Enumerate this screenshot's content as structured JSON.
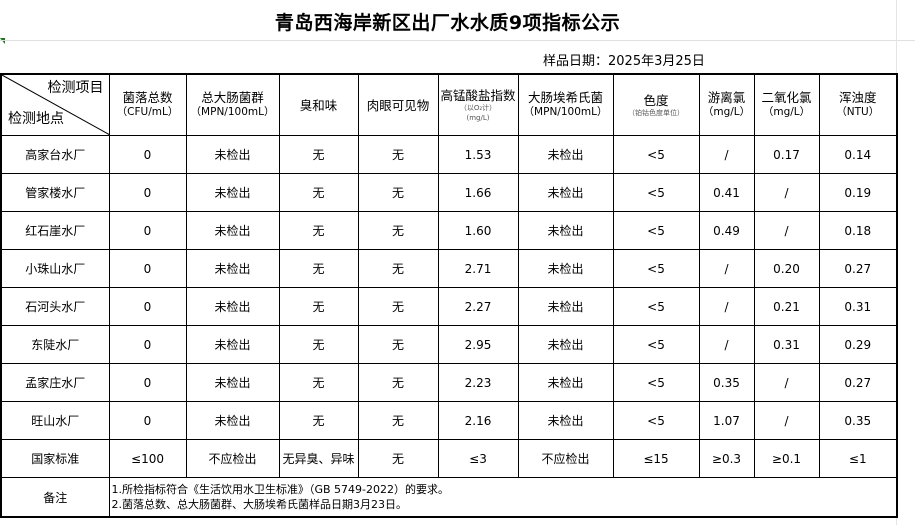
{
  "title": "青岛西海岸新区出厂水水质9项指标公示",
  "sample_date": "样品日期：2025年3月25日",
  "header": {
    "corner_top": "检测项目",
    "corner_bottom": "检测地点",
    "columns": [
      {
        "name": "菌落总数",
        "unit": "（CFU/mL）"
      },
      {
        "name": "总大肠菌群",
        "unit": "（MPN/100mL）"
      },
      {
        "name": "臭和味",
        "unit": ""
      },
      {
        "name": "肉眼可见物",
        "unit": ""
      },
      {
        "name": "高锰酸盐指数",
        "note": "（以O₂计）",
        "unit": "(mg/L)"
      },
      {
        "name": "大肠埃希氏菌",
        "unit": "（MPN/100mL）"
      },
      {
        "name": "色度",
        "note": "（铂钴色度单位）",
        "unit": ""
      },
      {
        "name": "游离氯",
        "unit": "（mg/L）"
      },
      {
        "name": "二氧化氯",
        "unit": "（mg/L）"
      },
      {
        "name": "浑浊度",
        "unit": "（NTU）"
      }
    ]
  },
  "rows": [
    {
      "site": "高家台水厂",
      "values": [
        "0",
        "未检出",
        "无",
        "无",
        "1.53",
        "未检出",
        "<5",
        "/",
        "0.17",
        "0.14"
      ]
    },
    {
      "site": "管家楼水厂",
      "values": [
        "0",
        "未检出",
        "无",
        "无",
        "1.66",
        "未检出",
        "<5",
        "0.41",
        "/",
        "0.19"
      ]
    },
    {
      "site": "红石崖水厂",
      "values": [
        "0",
        "未检出",
        "无",
        "无",
        "1.60",
        "未检出",
        "<5",
        "0.49",
        "/",
        "0.18"
      ]
    },
    {
      "site": "小珠山水厂",
      "values": [
        "0",
        "未检出",
        "无",
        "无",
        "2.71",
        "未检出",
        "<5",
        "/",
        "0.20",
        "0.27"
      ]
    },
    {
      "site": "石河头水厂",
      "values": [
        "0",
        "未检出",
        "无",
        "无",
        "2.27",
        "未检出",
        "<5",
        "/",
        "0.21",
        "0.31"
      ]
    },
    {
      "site": "东陡水厂",
      "values": [
        "0",
        "未检出",
        "无",
        "无",
        "2.95",
        "未检出",
        "<5",
        "/",
        "0.31",
        "0.29"
      ]
    },
    {
      "site": "孟家庄水厂",
      "values": [
        "0",
        "未检出",
        "无",
        "无",
        "2.23",
        "未检出",
        "<5",
        "0.35",
        "/",
        "0.27"
      ]
    },
    {
      "site": "旺山水厂",
      "values": [
        "0",
        "未检出",
        "无",
        "无",
        "2.16",
        "未检出",
        "<5",
        "1.07",
        "/",
        "0.35"
      ]
    }
  ],
  "standard": {
    "label": "国家标准",
    "values": [
      "≤100",
      "不应检出",
      "无异臭、异味",
      "无",
      "≤3",
      "不应检出",
      "≤15",
      "≥0.3",
      "≥0.1",
      "≤1"
    ]
  },
  "notes": {
    "label": "备注",
    "lines": [
      "1.所检指标符合《生活饮用水卫生标准》（GB 5749-2022）的要求。",
      "2.菌落总数、总大肠菌群、大肠埃希氏菌样品日期3月23日。"
    ]
  }
}
